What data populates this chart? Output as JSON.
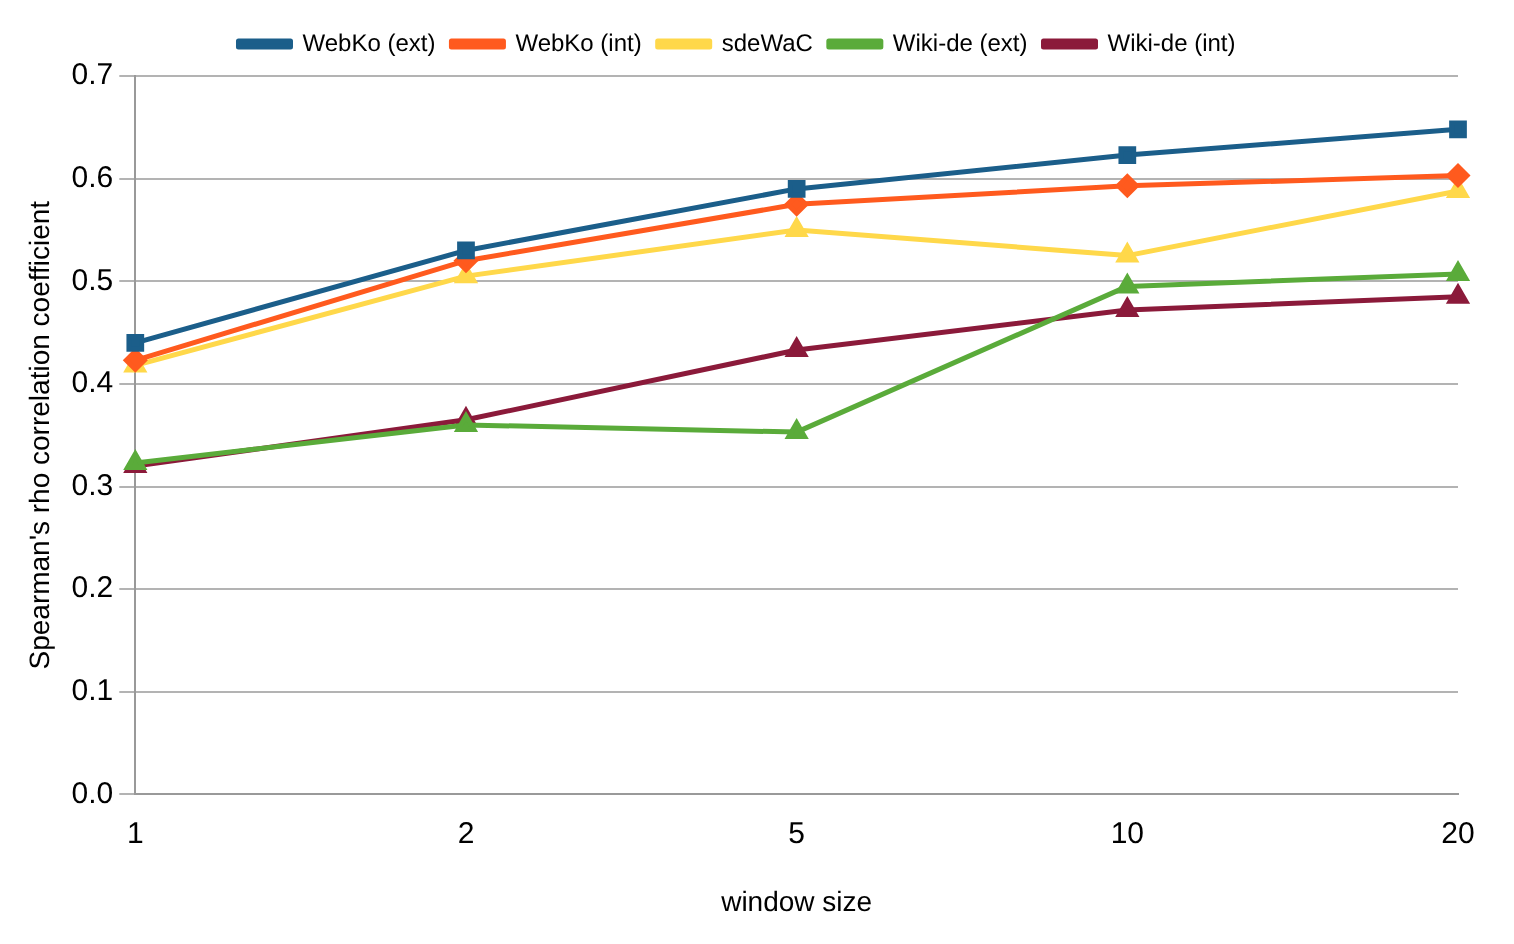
{
  "chart_data": {
    "type": "line",
    "xlabel": "window size",
    "ylabel": "Spearman's rho correlation coefficient",
    "categories": [
      "1",
      "2",
      "5",
      "10",
      "20"
    ],
    "series": [
      {
        "name": "WebKo (ext)",
        "color": "#1b5e8a",
        "marker": "square",
        "values": [
          0.44,
          0.53,
          0.59,
          0.623,
          0.648
        ]
      },
      {
        "name": "WebKo (int)",
        "color": "#ff5a1e",
        "marker": "diamond",
        "values": [
          0.423,
          0.52,
          0.575,
          0.593,
          0.603
        ]
      },
      {
        "name": "sdeWaC",
        "color": "#ffd84a",
        "marker": "triangle",
        "values": [
          0.418,
          0.505,
          0.55,
          0.525,
          0.588
        ]
      },
      {
        "name": "Wiki-de (ext)",
        "color": "#5aab3a",
        "marker": "triangle",
        "values": [
          0.323,
          0.36,
          0.353,
          0.495,
          0.507
        ]
      },
      {
        "name": "Wiki-de (int)",
        "color": "#8b1a3a",
        "marker": "triangle",
        "values": [
          0.32,
          0.365,
          0.433,
          0.472,
          0.485
        ]
      }
    ],
    "ylim": [
      0,
      0.7
    ],
    "yticks": [
      {
        "value": 0,
        "label": "0.0"
      },
      {
        "value": 0.1,
        "label": "0.1"
      },
      {
        "value": 0.2,
        "label": "0.2"
      },
      {
        "value": 0.3,
        "label": "0.3"
      },
      {
        "value": 0.4,
        "label": "0.4"
      },
      {
        "value": 0.5,
        "label": "0.5"
      },
      {
        "value": 0.6,
        "label": "0.6"
      },
      {
        "value": 0.7,
        "label": "0.7"
      }
    ],
    "grid": "y",
    "legend": "top",
    "line_style": "solid"
  }
}
